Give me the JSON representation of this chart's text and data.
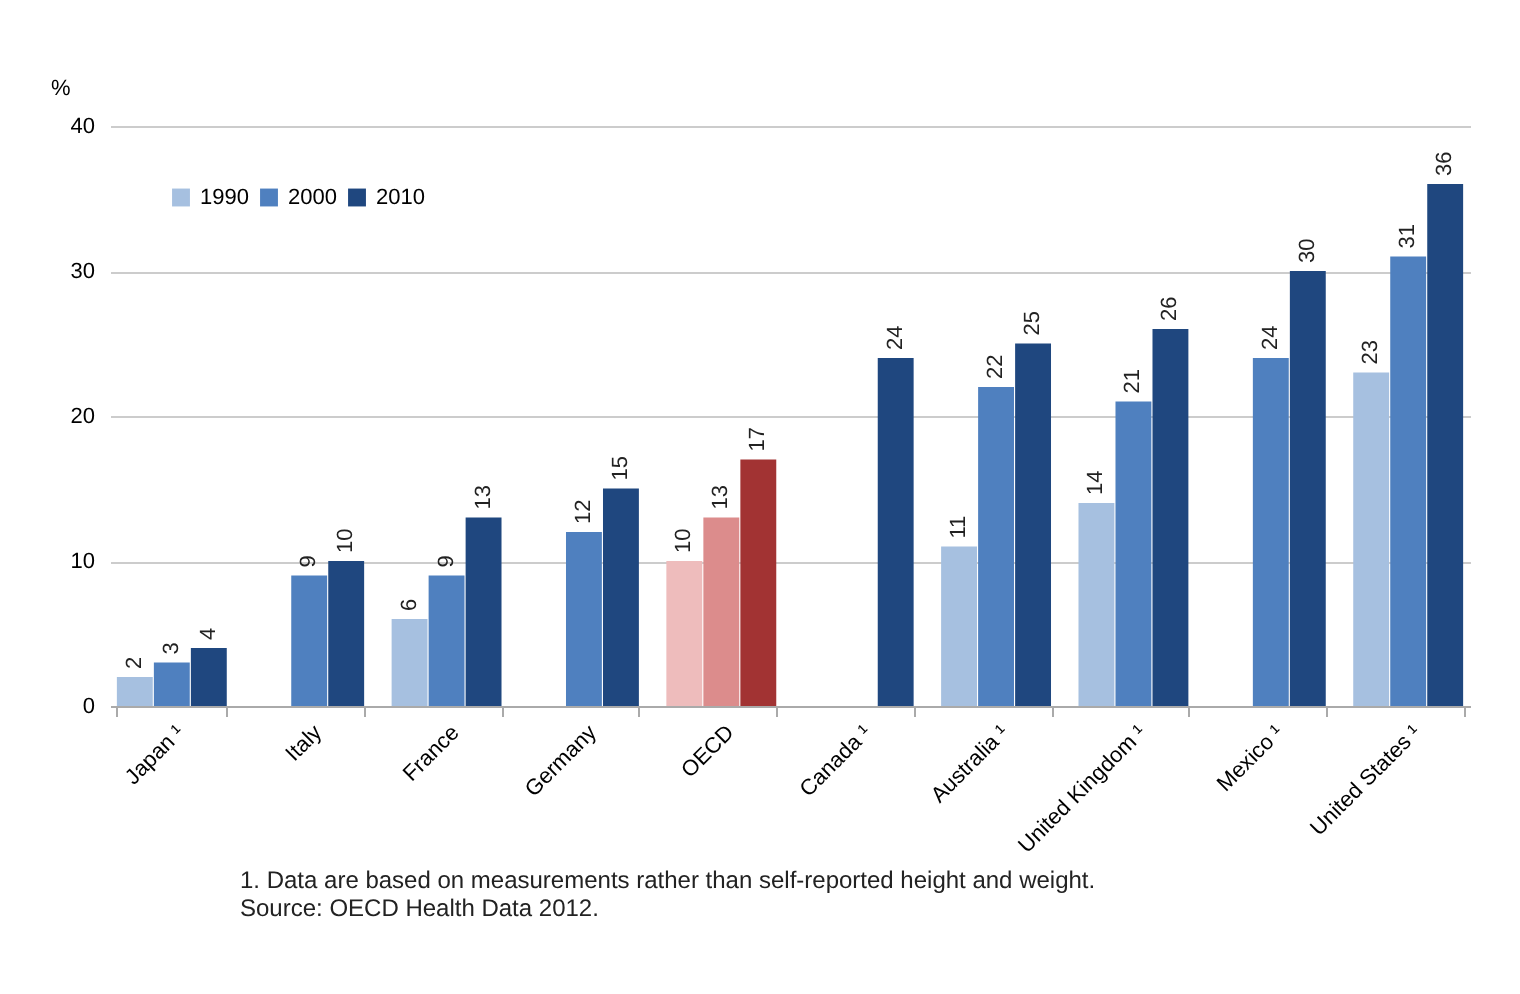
{
  "chart_data": {
    "type": "bar",
    "ylabel": "%",
    "categories": [
      "Japan ¹",
      "Italy",
      "France",
      "Germany",
      "OECD",
      "Canada ¹",
      "Australia ¹",
      "United Kingdom ¹",
      "Mexico ¹",
      "United States ¹"
    ],
    "series": [
      {
        "name": "1990",
        "color": "#a6c0e0",
        "colors": [
          "#a6c0e0",
          null,
          "#a6c0e0",
          null,
          "#eebcbc",
          null,
          "#a6c0e0",
          "#a6c0e0",
          null,
          "#a6c0e0"
        ],
        "values": [
          2,
          null,
          6,
          null,
          10,
          null,
          11,
          14,
          null,
          23
        ]
      },
      {
        "name": "2000",
        "color": "#4f80bf",
        "colors": [
          "#4f80bf",
          "#4f80bf",
          "#4f80bf",
          "#4f80bf",
          "#dc8c8c",
          null,
          "#4f80bf",
          "#4f80bf",
          "#4f80bf",
          "#4f80bf"
        ],
        "values": [
          3,
          9,
          9,
          12,
          13,
          null,
          22,
          21,
          24,
          31
        ]
      },
      {
        "name": "2010",
        "color": "#1f477f",
        "colors": [
          "#1f477f",
          "#1f477f",
          "#1f477f",
          "#1f477f",
          "#a23333",
          "#1f477f",
          "#1f477f",
          "#1f477f",
          "#1f477f",
          "#1f477f"
        ],
        "values": [
          4,
          10,
          13,
          15,
          17,
          24,
          25,
          26,
          30,
          36
        ]
      }
    ],
    "ylim": [
      0,
      40
    ],
    "yticks": [
      0,
      10,
      20,
      30,
      40
    ],
    "grid": "y",
    "legend": "top left",
    "data_labels": true,
    "annotations": [
      "1. Data are based on measurements rather than self-reported height and weight.",
      "Source: OECD Health Data 2012."
    ]
  }
}
